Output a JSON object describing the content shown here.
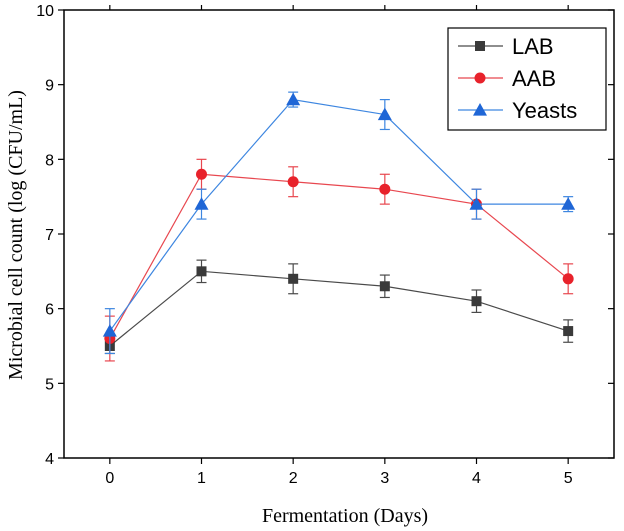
{
  "chart_data": {
    "type": "line",
    "title": "",
    "xlabel": "Fermentation (Days)",
    "ylabel": "Microbial cell count (log (CFU/mL)",
    "x": [
      0,
      1,
      2,
      3,
      4,
      5
    ],
    "xlim": [
      -0.5,
      5.5
    ],
    "ylim": [
      4,
      10
    ],
    "xticks": [
      "0",
      "1",
      "2",
      "3",
      "4",
      "5"
    ],
    "yticks": [
      "4",
      "5",
      "6",
      "7",
      "8",
      "9",
      "10"
    ],
    "grid": false,
    "legend_position": "top-right",
    "series": [
      {
        "name": "LAB",
        "marker": "square",
        "color": "#4a4a4a",
        "marker_color": "#3a3a3a",
        "values": [
          5.5,
          6.5,
          6.4,
          6.3,
          6.1,
          5.7
        ],
        "errors": [
          0.1,
          0.15,
          0.2,
          0.15,
          0.15,
          0.15
        ]
      },
      {
        "name": "AAB",
        "marker": "circle",
        "color": "#e8474f",
        "marker_color": "#e8222b",
        "values": [
          5.6,
          7.8,
          7.7,
          7.6,
          7.4,
          6.4
        ],
        "errors": [
          0.3,
          0.2,
          0.2,
          0.2,
          0.2,
          0.2
        ]
      },
      {
        "name": "Yeasts",
        "marker": "triangle",
        "color": "#3d86e0",
        "marker_color": "#1f66d6",
        "values": [
          5.7,
          7.4,
          8.8,
          8.6,
          7.4,
          7.4
        ],
        "errors": [
          0.3,
          0.2,
          0.1,
          0.2,
          0.2,
          0.1
        ]
      }
    ]
  }
}
